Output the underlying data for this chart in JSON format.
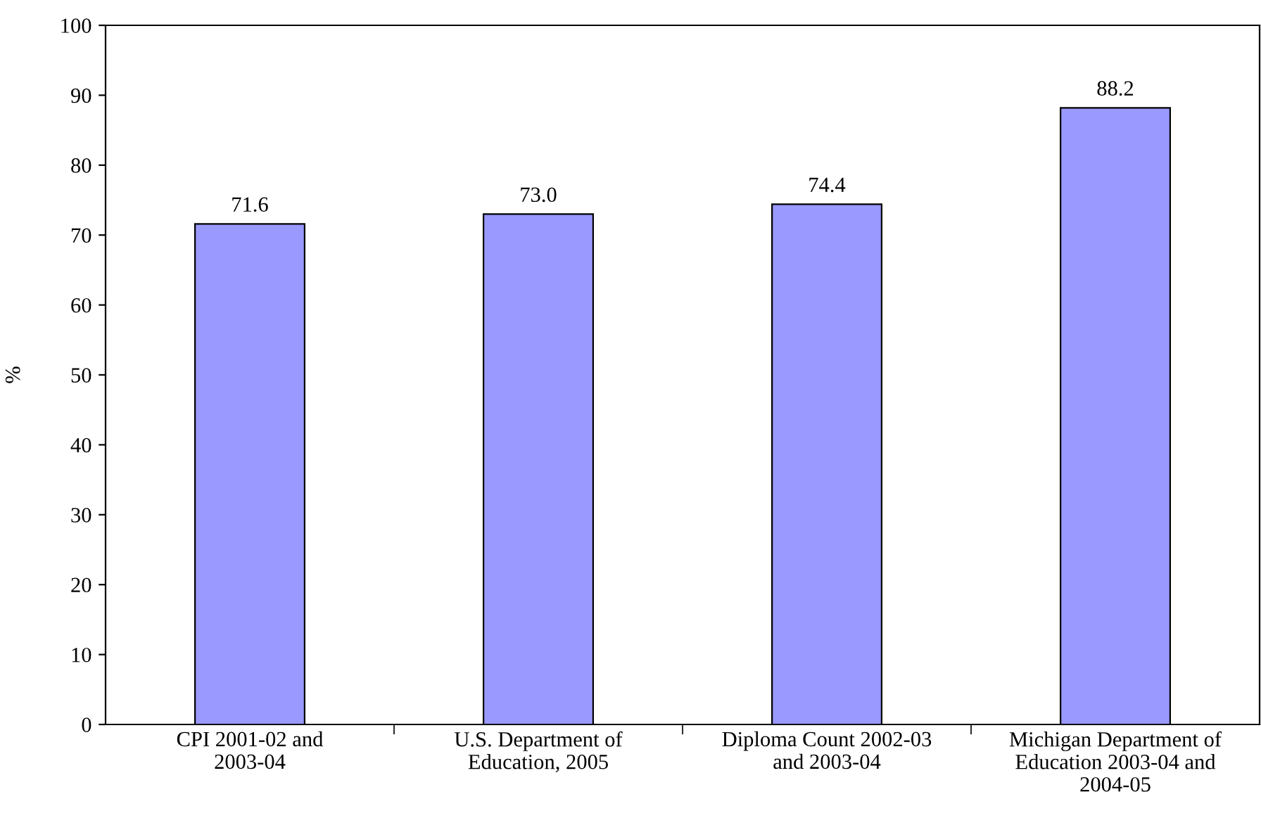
{
  "chart_data": {
    "type": "bar",
    "categories": [
      "CPI 2001-02 and 2003-04",
      "U.S. Department of Education, 2005",
      "Diploma Count 2002-03 and 2003-04",
      "Michigan Department of Education 2003-04 and 2004-05"
    ],
    "values": [
      71.6,
      73.0,
      74.4,
      88.2
    ],
    "value_labels": [
      "71.6",
      "73.0",
      "74.4",
      "88.2"
    ],
    "color": "#9999ff",
    "ylabel": "%",
    "ylim": [
      0,
      100
    ],
    "yticks": [
      0,
      10,
      20,
      30,
      40,
      50,
      60,
      70,
      80,
      90,
      100
    ],
    "grid": false,
    "legend": false
  }
}
